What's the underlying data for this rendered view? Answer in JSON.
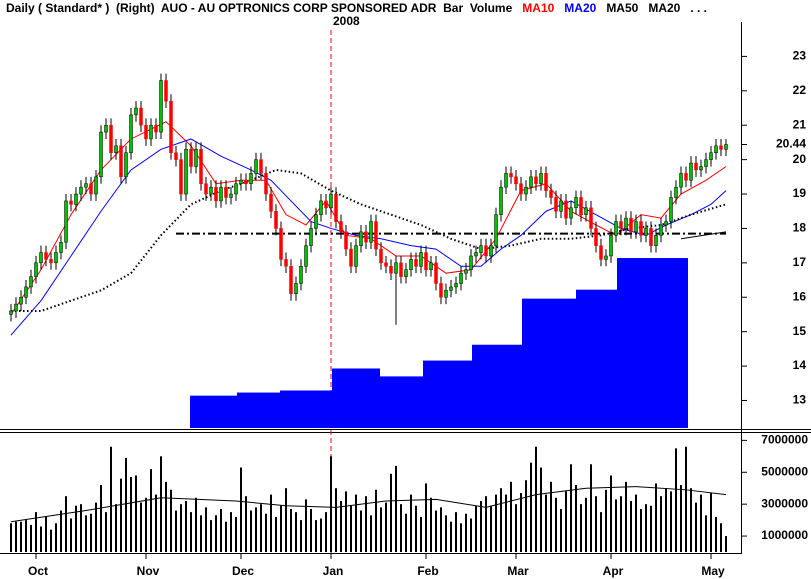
{
  "chart_data": {
    "type": "candlestick",
    "title": "Daily ( Standard* )  (Right)  AUO - AU OPTRONICS CORP SPONSORED ADR  Bar  Volume",
    "subtitle": "2008",
    "legend_suffix": ". . .",
    "xlim": [
      -1.8,
      145.8
    ],
    "xticks": [
      {
        "value": 5,
        "label": "Oct"
      },
      {
        "value": 27,
        "label": "Nov"
      },
      {
        "value": 46,
        "label": "Dec"
      },
      {
        "value": 64,
        "label": "Jan"
      },
      {
        "value": 83,
        "label": "Feb"
      },
      {
        "value": 101,
        "label": "Mar"
      },
      {
        "value": 120,
        "label": "Apr"
      },
      {
        "value": 140,
        "label": "May"
      }
    ],
    "year_divider": 64,
    "ylim": [
      12.2,
      24.0
    ],
    "yticks": [
      13,
      14,
      15,
      16,
      17,
      18,
      19,
      20,
      21,
      22,
      23
    ],
    "up_color": "#00c000",
    "down_color": "#ff0000",
    "open": [
      15.5,
      15.6,
      15.8,
      16.0,
      16.3,
      16.6,
      17.0,
      17.3,
      17.1,
      17.0,
      17.3,
      17.6,
      18.8,
      18.7,
      19.0,
      19.2,
      19.3,
      19.0,
      19.5,
      20.8,
      21.0,
      20.2,
      20.4,
      19.5,
      20.2,
      21.3,
      21.5,
      21.0,
      20.6,
      21.0,
      20.8,
      22.3,
      21.7,
      20.2,
      20.0,
      19.0,
      20.3,
      19.8,
      20.3,
      19.3,
      19.0,
      19.2,
      18.8,
      19.2,
      18.9,
      19.0,
      19.3,
      19.4,
      19.3,
      19.6,
      20.0,
      19.6,
      19.0,
      18.5,
      18.0,
      17.1,
      16.9,
      16.1,
      16.4,
      16.9,
      17.5,
      18.0,
      18.4,
      18.8,
      18.6,
      19.0,
      18.2,
      17.9,
      17.4,
      16.9,
      17.5,
      17.9,
      17.6,
      18.2,
      17.4,
      17.0,
      16.9,
      16.7,
      17.0,
      16.6,
      16.8,
      17.1,
      16.9,
      17.3,
      16.8,
      17.0,
      16.4,
      16.0,
      16.2,
      16.3,
      16.4,
      16.7,
      16.8,
      17.2,
      17.3,
      17.5,
      17.2,
      17.5,
      18.4,
      19.2,
      19.6,
      19.5,
      19.3,
      19.0,
      19.2,
      19.5,
      19.3,
      19.6,
      19.1,
      18.9,
      18.5,
      18.8,
      18.3,
      18.6,
      18.9,
      18.4,
      18.6,
      18.0,
      17.5,
      17.1,
      17.2,
      17.8,
      18.2,
      18.0,
      18.3,
      17.9,
      18.2,
      17.8,
      18.0,
      17.5,
      17.8,
      18.1,
      18.2,
      18.9,
      19.2,
      19.6,
      19.4,
      19.9,
      19.7,
      19.8,
      20.0,
      20.2,
      20.4,
      20.3
    ],
    "high": [
      15.8,
      16.0,
      16.2,
      16.5,
      16.8,
      17.2,
      17.5,
      17.5,
      17.3,
      17.5,
      17.8,
      19.0,
      19.0,
      19.2,
      19.4,
      19.5,
      19.5,
      19.7,
      21.0,
      21.2,
      21.2,
      20.6,
      20.6,
      20.4,
      21.5,
      21.7,
      21.7,
      21.2,
      21.2,
      21.2,
      22.5,
      22.5,
      21.9,
      20.4,
      20.2,
      20.5,
      20.5,
      20.5,
      20.5,
      19.5,
      19.4,
      19.4,
      19.4,
      19.4,
      19.2,
      19.5,
      19.6,
      19.6,
      19.8,
      20.2,
      20.2,
      19.8,
      19.2,
      18.7,
      18.2,
      17.3,
      17.1,
      16.6,
      17.1,
      17.7,
      18.2,
      18.6,
      19.0,
      19.0,
      19.2,
      19.2,
      18.4,
      18.1,
      17.6,
      17.7,
      18.1,
      18.1,
      18.4,
      18.4,
      17.6,
      17.2,
      17.1,
      17.2,
      17.2,
      17.0,
      17.3,
      17.3,
      17.5,
      17.5,
      17.2,
      17.2,
      16.6,
      16.4,
      16.5,
      16.6,
      16.9,
      17.0,
      17.4,
      17.5,
      17.7,
      17.7,
      17.7,
      18.6,
      19.4,
      19.8,
      19.8,
      19.7,
      19.5,
      19.4,
      19.7,
      19.7,
      19.8,
      19.8,
      19.3,
      19.1,
      19.0,
      19.0,
      18.8,
      19.1,
      19.1,
      18.8,
      18.8,
      18.2,
      17.7,
      17.4,
      18.0,
      18.4,
      18.4,
      18.5,
      18.5,
      18.4,
      18.4,
      18.2,
      18.2,
      18.0,
      18.3,
      18.4,
      19.1,
      19.4,
      19.8,
      19.8,
      20.1,
      20.1,
      20.0,
      20.2,
      20.4,
      20.6,
      20.6,
      20.6
    ],
    "low": [
      15.3,
      15.4,
      15.6,
      15.8,
      16.1,
      16.4,
      16.8,
      16.9,
      16.8,
      16.8,
      17.1,
      17.4,
      18.5,
      18.5,
      18.8,
      19.0,
      18.8,
      18.8,
      19.3,
      20.6,
      20.0,
      20.0,
      19.3,
      19.3,
      20.0,
      21.1,
      20.8,
      20.4,
      20.4,
      20.6,
      20.6,
      21.5,
      20.0,
      19.8,
      18.8,
      18.8,
      19.6,
      19.6,
      19.1,
      18.8,
      18.8,
      18.6,
      18.6,
      18.7,
      18.7,
      18.8,
      19.1,
      19.1,
      19.1,
      19.4,
      19.4,
      18.8,
      18.3,
      17.8,
      16.9,
      16.7,
      15.9,
      15.9,
      16.2,
      16.7,
      17.3,
      17.8,
      18.2,
      18.4,
      18.4,
      18.0,
      17.7,
      17.2,
      16.7,
      16.7,
      17.3,
      17.4,
      17.4,
      17.2,
      16.8,
      16.7,
      16.5,
      15.2,
      16.4,
      16.4,
      16.6,
      16.7,
      16.7,
      16.6,
      16.6,
      16.2,
      15.8,
      15.8,
      16.0,
      16.1,
      16.2,
      16.5,
      16.6,
      17.0,
      17.1,
      17.0,
      17.0,
      17.3,
      18.2,
      19.0,
      19.3,
      19.1,
      18.8,
      18.8,
      19.0,
      19.1,
      19.1,
      18.9,
      18.7,
      18.3,
      18.3,
      18.1,
      18.1,
      18.4,
      18.2,
      18.2,
      17.8,
      17.3,
      16.9,
      16.9,
      17.0,
      17.6,
      17.8,
      17.8,
      17.7,
      17.7,
      17.6,
      17.6,
      17.3,
      17.3,
      17.6,
      17.9,
      18.0,
      18.7,
      19.0,
      19.2,
      19.2,
      19.5,
      19.5,
      19.6,
      19.8,
      20.0,
      20.1,
      20.1
    ],
    "close": [
      15.6,
      15.8,
      16.0,
      16.3,
      16.6,
      17.0,
      17.3,
      17.1,
      17.0,
      17.3,
      17.6,
      18.8,
      18.7,
      19.0,
      19.2,
      19.3,
      19.0,
      19.5,
      20.8,
      21.0,
      20.2,
      20.4,
      19.5,
      20.2,
      21.3,
      21.5,
      21.0,
      20.6,
      21.0,
      20.8,
      22.3,
      21.7,
      20.2,
      20.0,
      19.0,
      20.3,
      19.8,
      20.3,
      19.3,
      19.0,
      19.2,
      18.8,
      19.2,
      18.9,
      19.0,
      19.3,
      19.4,
      19.3,
      19.6,
      20.0,
      19.6,
      19.0,
      18.5,
      18.0,
      17.1,
      16.9,
      16.1,
      16.4,
      16.9,
      17.5,
      18.0,
      18.4,
      18.8,
      18.6,
      19.0,
      18.2,
      17.9,
      17.4,
      16.9,
      17.5,
      17.9,
      17.6,
      18.2,
      17.4,
      17.0,
      16.9,
      16.7,
      17.0,
      16.6,
      16.8,
      17.1,
      16.9,
      17.3,
      16.8,
      17.0,
      16.4,
      16.0,
      16.2,
      16.3,
      16.4,
      16.7,
      16.8,
      17.2,
      17.3,
      17.5,
      17.2,
      17.5,
      18.4,
      19.2,
      19.6,
      19.5,
      19.3,
      19.0,
      19.2,
      19.5,
      19.3,
      19.6,
      19.1,
      18.9,
      18.5,
      18.8,
      18.3,
      18.6,
      18.9,
      18.4,
      18.6,
      18.0,
      17.5,
      17.1,
      17.2,
      17.8,
      18.2,
      18.0,
      18.3,
      17.9,
      18.2,
      17.8,
      18.0,
      17.5,
      17.8,
      18.1,
      18.2,
      18.9,
      19.2,
      19.6,
      19.4,
      19.9,
      19.7,
      19.8,
      20.0,
      20.2,
      20.4,
      20.3,
      20.44
    ],
    "moving_averages": [
      {
        "name": "MA10",
        "color": "#ff0000",
        "style": "solid",
        "x": [
          0,
          6,
          12,
          18,
          24,
          31,
          36,
          41,
          46,
          51,
          55,
          59,
          63,
          67,
          72,
          77,
          82,
          87,
          92,
          97,
          102,
          107,
          112,
          117,
          121,
          126,
          130,
          134,
          139,
          143
        ],
        "values": [
          15.5,
          16.8,
          18.4,
          19.7,
          20.6,
          21.1,
          20.4,
          19.3,
          19.4,
          19.4,
          18.4,
          18.1,
          18.8,
          17.8,
          17.7,
          17.2,
          17.2,
          16.7,
          16.8,
          17.7,
          19.1,
          19.3,
          18.5,
          18.1,
          17.8,
          18.4,
          18.3,
          19.0,
          19.4,
          19.8
        ]
      },
      {
        "name": "MA20",
        "color": "#0000ff",
        "style": "solid",
        "x": [
          0,
          6,
          12,
          18,
          24,
          30,
          36,
          42,
          48,
          52,
          56,
          60,
          64,
          69,
          74,
          80,
          85,
          90,
          94,
          98,
          102,
          107,
          112,
          117,
          122,
          127,
          131,
          136,
          140,
          143
        ],
        "values": [
          14.9,
          15.9,
          17.2,
          18.5,
          19.7,
          20.3,
          20.6,
          20.1,
          19.7,
          19.4,
          18.8,
          18.2,
          18.0,
          17.8,
          17.7,
          17.5,
          17.4,
          16.9,
          16.9,
          17.4,
          17.8,
          18.5,
          18.8,
          18.4,
          18.0,
          17.8,
          18.1,
          18.4,
          18.7,
          19.1
        ]
      },
      {
        "name": "MA50",
        "color": "#000000",
        "style": "dotted",
        "x": [
          0,
          6,
          12,
          18,
          24,
          30,
          36,
          42,
          48,
          53,
          58,
          64,
          70,
          76,
          82,
          88,
          94,
          100,
          106,
          112,
          118,
          124,
          130,
          136,
          143
        ],
        "values": [
          15.6,
          15.6,
          15.9,
          16.2,
          16.7,
          17.8,
          18.7,
          19.1,
          19.4,
          19.7,
          19.6,
          19.1,
          18.7,
          18.4,
          18.1,
          17.7,
          17.4,
          17.5,
          17.7,
          17.7,
          17.8,
          18.0,
          18.1,
          18.4,
          18.7
        ]
      },
      {
        "name": "MA20",
        "color": "#000000",
        "style": "solid",
        "x": [
          134,
          143
        ],
        "values": [
          17.7,
          17.9
        ]
      }
    ],
    "price_bars": {
      "color": "#0000ff",
      "edges": [
        35.8,
        45.2,
        53.8,
        64.2,
        73.8,
        82.4,
        92.2,
        102.2,
        113.0,
        121.2,
        135.4
      ],
      "values": [
        13.14,
        13.23,
        13.29,
        13.93,
        13.7,
        14.16,
        14.62,
        15.96,
        16.22,
        17.14
      ]
    },
    "reference_line": {
      "value": 17.85,
      "x": [
        33,
        143
      ],
      "style": "dash-dot"
    },
    "volume": {
      "color": "#000000",
      "ylim": [
        0,
        7400000
      ],
      "yticks": [
        1000000,
        3000000,
        5000000,
        7000000
      ],
      "values": [
        1800000,
        1900000,
        1900000,
        2000000,
        1700000,
        2500000,
        1600000,
        2200000,
        1400000,
        1800000,
        2600000,
        3500000,
        2100000,
        2900000,
        3000000,
        2300000,
        2400000,
        3100000,
        4200000,
        2500000,
        6600000,
        3000000,
        4600000,
        5900000,
        4700000,
        4800000,
        3100000,
        3400000,
        5200000,
        3600000,
        6000000,
        4400000,
        3900000,
        2600000,
        3000000,
        3200000,
        2500000,
        3400000,
        2300000,
        2800000,
        2000000,
        2300000,
        2700000,
        1900000,
        2500000,
        2200000,
        5300000,
        3500000,
        2600000,
        2800000,
        3000000,
        2400000,
        3600000,
        2200000,
        2900000,
        4000000,
        2700000,
        2500000,
        2000000,
        3300000,
        2700000,
        2000000,
        2100000,
        2500000,
        6000000,
        4000000,
        3200000,
        3800000,
        2900000,
        3600000,
        2600000,
        3500000,
        2300000,
        3900000,
        2800000,
        3100000,
        4900000,
        5400000,
        3000000,
        2400000,
        3600000,
        2900000,
        2200000,
        4300000,
        3400000,
        2600000,
        2800000,
        2300000,
        1900000,
        2500000,
        1800000,
        2400000,
        2100000,
        2900000,
        3200000,
        3500000,
        2900000,
        3600000,
        4000000,
        3600000,
        4400000,
        3000000,
        3700000,
        4500000,
        5600000,
        6600000,
        5300000,
        3600000,
        4400000,
        3400000,
        2700000,
        3800000,
        5500000,
        4200000,
        3000000,
        3400000,
        5500000,
        3500000,
        2500000,
        3900000,
        4800000,
        3300000,
        3500000,
        4400000,
        3200000,
        3600000,
        2700000,
        3000000,
        2900000,
        4300000,
        3500000,
        4000000,
        3800000,
        6500000,
        4200000,
        6600000,
        4000000,
        3100000,
        3600000,
        2300000,
        3700000,
        2200000,
        1800000,
        1000000
      ],
      "ma": {
        "x": [
          0,
          15,
          30,
          45,
          55,
          65,
          75,
          85,
          95,
          105,
          115,
          125,
          135,
          143
        ],
        "values": [
          1900000,
          2600000,
          3400000,
          3200000,
          2900000,
          2800000,
          3200000,
          3300000,
          2800000,
          3600000,
          4000000,
          4100000,
          3900000,
          3600000
        ]
      }
    }
  }
}
